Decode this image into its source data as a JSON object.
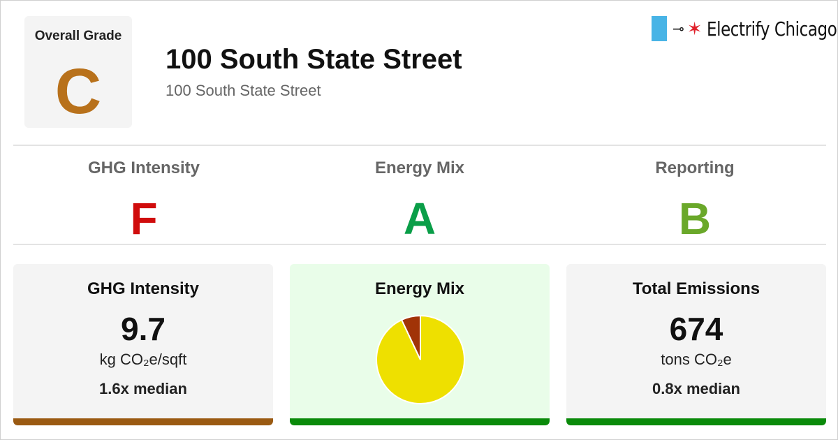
{
  "overall": {
    "label": "Overall Grade",
    "grade": "C",
    "color": "#b8711b"
  },
  "building": {
    "name": "100 South State Street",
    "address": "100 South State Street"
  },
  "logo": {
    "text": "Electrify Chicago",
    "flag_color": "#48b4e6",
    "star_color": "#e0202a"
  },
  "subgrades": [
    {
      "label": "GHG Intensity",
      "grade": "F",
      "color": "#d00c0c"
    },
    {
      "label": "Energy Mix",
      "grade": "A",
      "color": "#0a9e48"
    },
    {
      "label": "Reporting",
      "grade": "B",
      "color": "#6aa82a"
    }
  ],
  "cards": {
    "ghg": {
      "title": "GHG Intensity",
      "value": "9.7",
      "unit": "kg CO₂e/sqft",
      "median": "1.6x median",
      "bar_color": "#9a5a12"
    },
    "mix": {
      "title": "Energy Mix",
      "bar_color": "#0a8a0a",
      "bg_color": "#e9fde9"
    },
    "emissions": {
      "title": "Total Emissions",
      "value": "674",
      "unit": "tons CO₂e",
      "median": "0.8x median",
      "bar_color": "#0a8a0a"
    }
  },
  "chart_data": {
    "type": "pie",
    "slices": [
      {
        "value": 93,
        "color": "#eee000"
      },
      {
        "value": 7,
        "color": "#a13307"
      }
    ]
  }
}
